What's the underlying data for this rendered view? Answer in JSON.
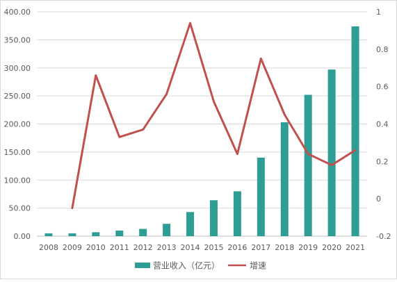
{
  "chart_data": {
    "type": "bar",
    "categories": [
      "2008",
      "2009",
      "2010",
      "2011",
      "2012",
      "2013",
      "2014",
      "2015",
      "2016",
      "2017",
      "2018",
      "2019",
      "2020",
      "2021"
    ],
    "series": [
      {
        "name": "营业收入（亿元）",
        "type": "bar",
        "axis": "left",
        "color": "#2e9e94",
        "values": [
          5,
          5,
          7,
          10,
          13,
          22,
          43,
          64,
          80,
          140,
          203,
          252,
          297,
          374
        ]
      },
      {
        "name": "增速",
        "type": "line",
        "axis": "right",
        "color": "#c0504d",
        "values": [
          null,
          -0.05,
          0.66,
          0.33,
          0.37,
          0.56,
          0.94,
          0.52,
          0.24,
          0.75,
          0.45,
          0.24,
          0.18,
          0.26
        ]
      }
    ],
    "y_left": {
      "ylim": [
        0,
        400
      ],
      "ticks": [
        "0.00",
        "50.00",
        "100.00",
        "150.00",
        "200.00",
        "250.00",
        "300.00",
        "350.00",
        "400.00"
      ]
    },
    "y_right": {
      "ylim": [
        -0.2,
        1
      ],
      "ticks": [
        "-0.2",
        "0",
        "0.2",
        "0.4",
        "0.6",
        "0.8",
        "1"
      ]
    },
    "grid": "horizontal",
    "legend": "bottom-center",
    "legend_entries": [
      "营业收入（亿元）",
      "增速"
    ]
  }
}
